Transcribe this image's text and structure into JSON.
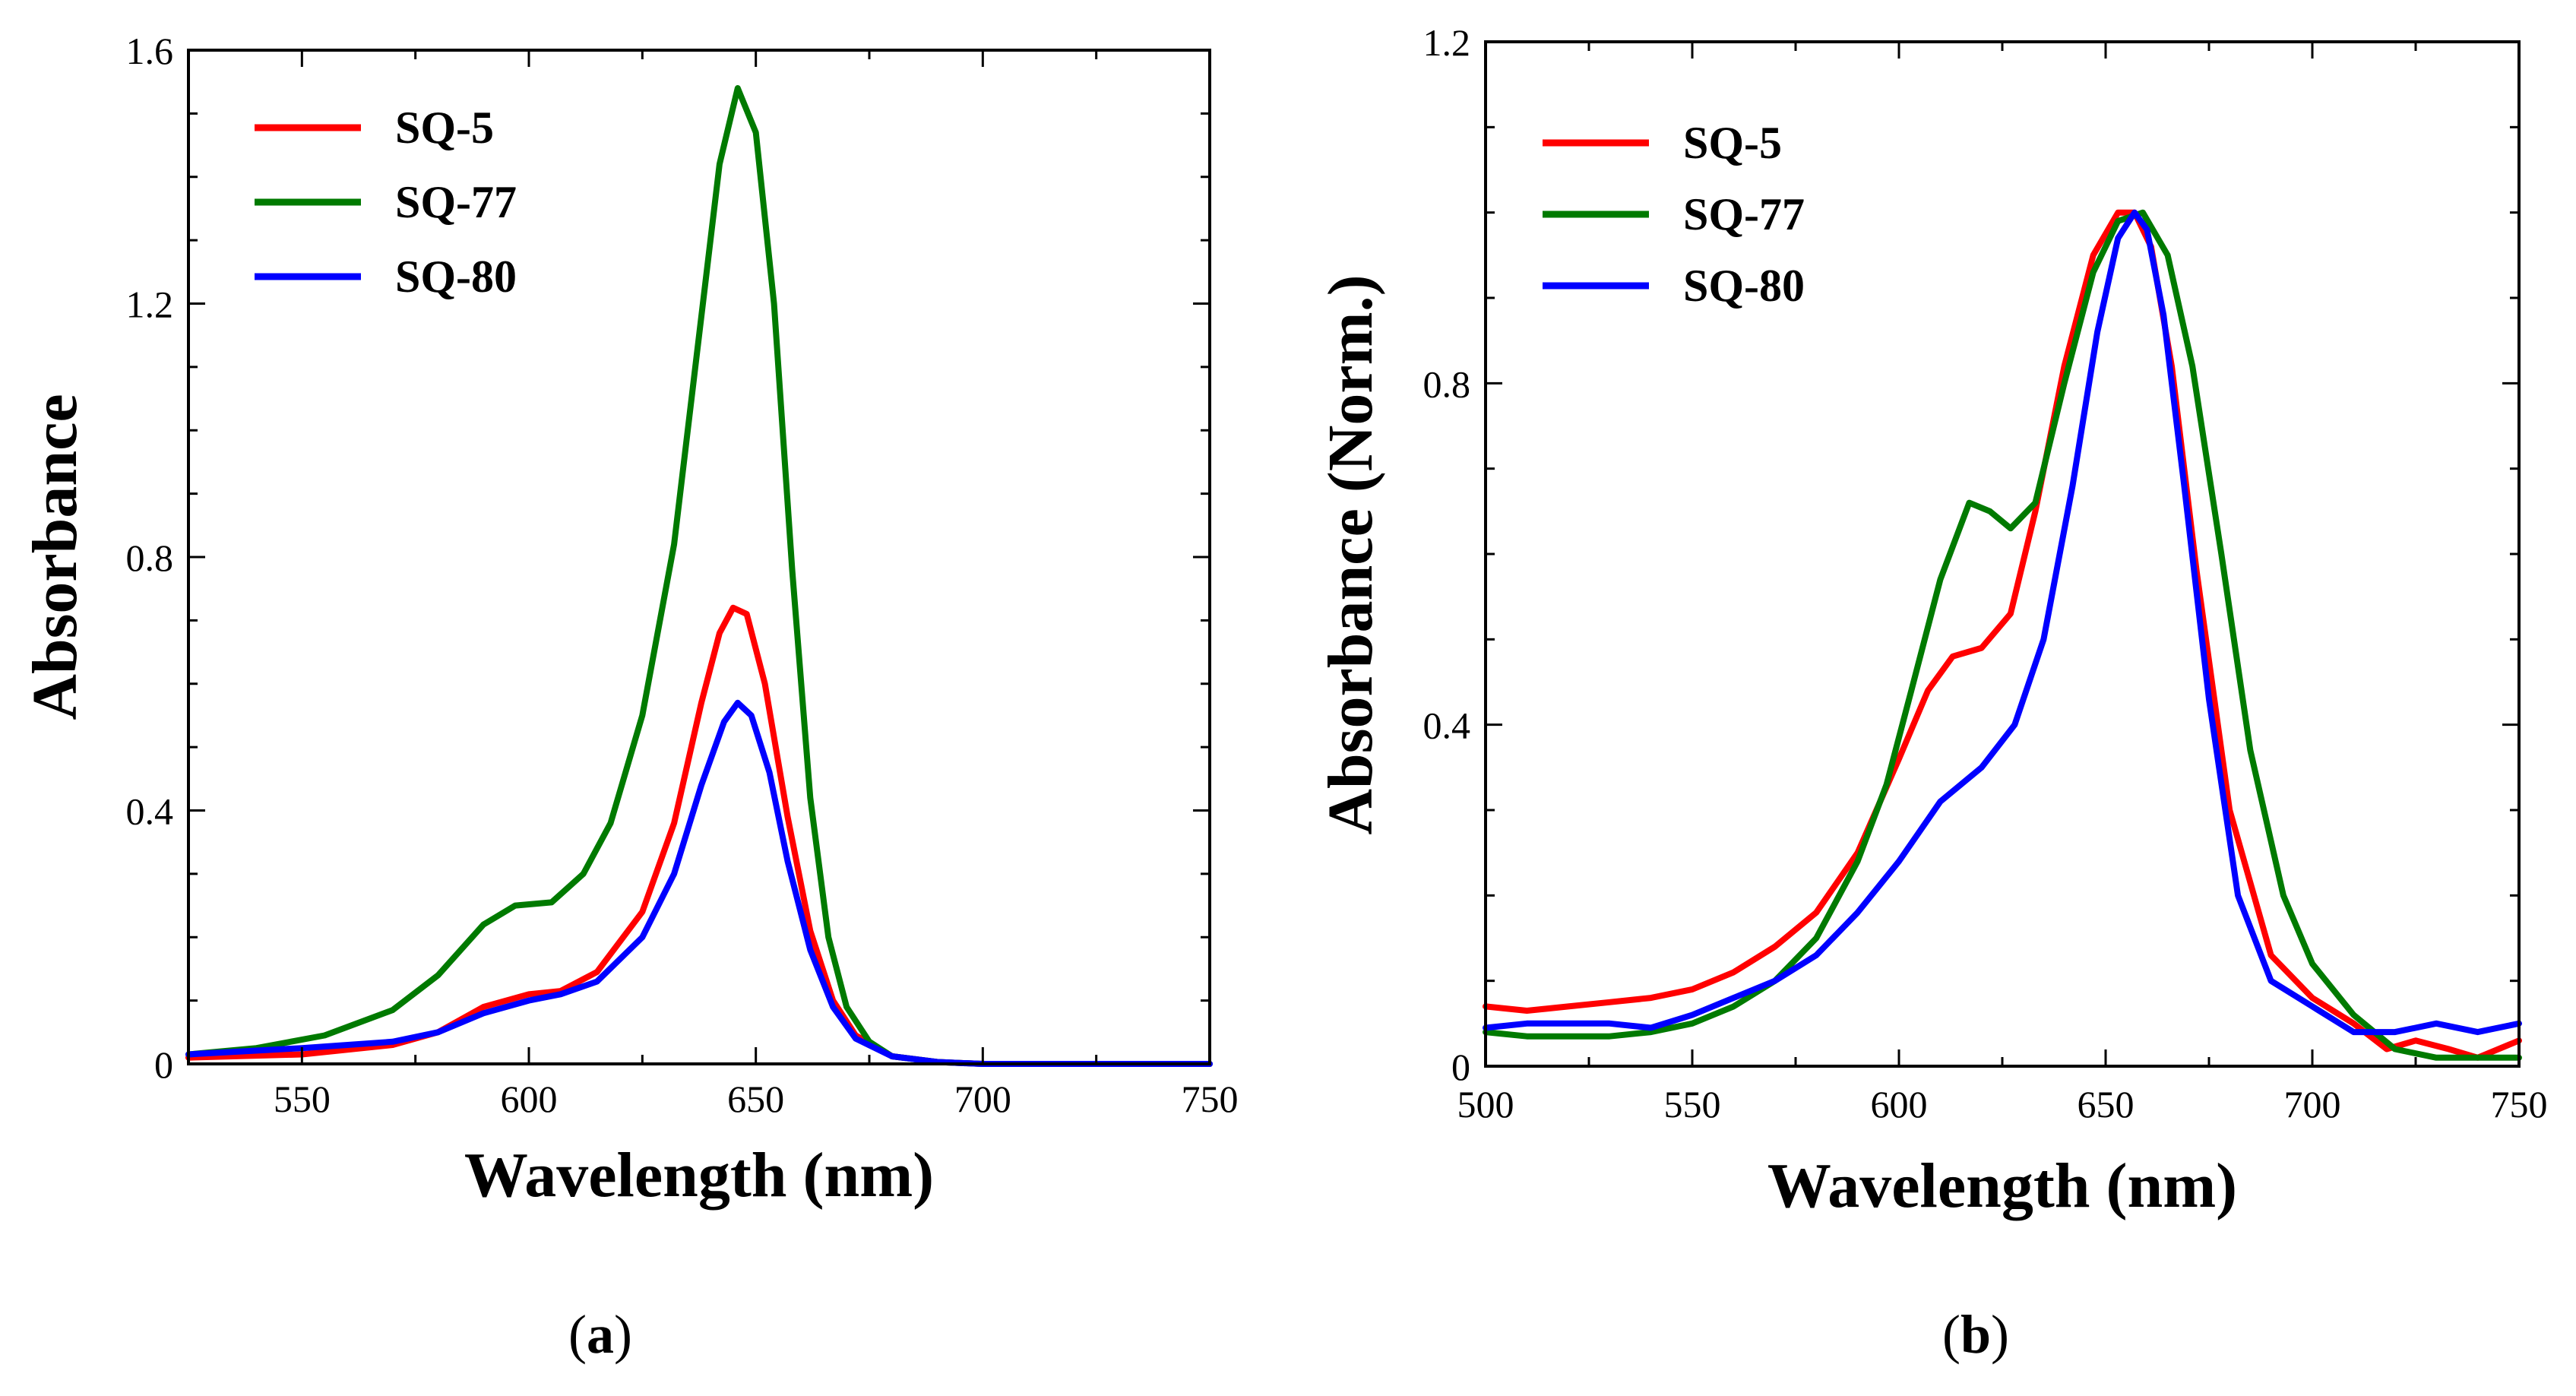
{
  "chart_data": [
    {
      "panel": "a",
      "type": "line",
      "title": "",
      "caption_open": "(",
      "caption_letter": "a",
      "caption_close": ")",
      "xlabel": "Wavelength (nm)",
      "ylabel": "Absorbance",
      "xlim": [
        525,
        750
      ],
      "ylim": [
        0,
        1.6
      ],
      "xticks": [
        550,
        600,
        650,
        700,
        750
      ],
      "xtick_labels": [
        "550",
        "600",
        "650",
        "700",
        "750"
      ],
      "xminor": 25,
      "yticks": [
        0,
        0.4,
        0.8,
        1.2,
        1.6
      ],
      "ytick_labels": [
        "0",
        "0.4",
        "0.8",
        "1.2",
        "1.6"
      ],
      "yminor": 0.1,
      "legend_position": "top-left",
      "series": [
        {
          "name": "SQ-5",
          "color": "#ff0000",
          "x": [
            525,
            550,
            570,
            580,
            590,
            600,
            607,
            615,
            625,
            632,
            638,
            642,
            645,
            648,
            652,
            657,
            662,
            667,
            672,
            680,
            690,
            700,
            750
          ],
          "y": [
            0.01,
            0.015,
            0.03,
            0.05,
            0.09,
            0.11,
            0.115,
            0.145,
            0.24,
            0.38,
            0.57,
            0.68,
            0.72,
            0.71,
            0.6,
            0.39,
            0.21,
            0.1,
            0.045,
            0.012,
            0.003,
            0,
            0
          ]
        },
        {
          "name": "SQ-77",
          "color": "#007a00",
          "x": [
            525,
            540,
            555,
            570,
            580,
            590,
            597,
            605,
            612,
            618,
            625,
            632,
            638,
            642,
            646,
            650,
            654,
            658,
            662,
            666,
            670,
            675,
            680,
            690,
            700,
            750
          ],
          "y": [
            0.015,
            0.025,
            0.045,
            0.085,
            0.14,
            0.22,
            0.25,
            0.255,
            0.3,
            0.38,
            0.55,
            0.82,
            1.18,
            1.42,
            1.54,
            1.47,
            1.2,
            0.78,
            0.42,
            0.2,
            0.09,
            0.035,
            0.012,
            0.003,
            0,
            0
          ]
        },
        {
          "name": "SQ-80",
          "color": "#0000ff",
          "x": [
            525,
            550,
            570,
            580,
            590,
            600,
            607,
            615,
            625,
            632,
            638,
            643,
            646,
            649,
            653,
            657,
            662,
            667,
            672,
            680,
            690,
            700,
            750
          ],
          "y": [
            0.015,
            0.025,
            0.035,
            0.05,
            0.08,
            0.1,
            0.11,
            0.13,
            0.2,
            0.3,
            0.44,
            0.54,
            0.57,
            0.55,
            0.46,
            0.32,
            0.18,
            0.09,
            0.04,
            0.012,
            0.003,
            0,
            0
          ]
        }
      ]
    },
    {
      "panel": "b",
      "type": "line",
      "title": "",
      "caption_open": "(",
      "caption_letter": "b",
      "caption_close": ")",
      "xlabel": "Wavelength (nm)",
      "ylabel": "Absorbance (Norm.)",
      "xlim": [
        500,
        750
      ],
      "ylim": [
        0,
        1.2
      ],
      "xticks": [
        500,
        550,
        600,
        650,
        700,
        750
      ],
      "xtick_labels": [
        "500",
        "550",
        "600",
        "650",
        "700",
        "750"
      ],
      "xminor": 25,
      "yticks": [
        0,
        0.4,
        0.8,
        1.2
      ],
      "ytick_labels": [
        "0",
        "0.4",
        "0.8",
        "1.2"
      ],
      "yminor": 0.1,
      "legend_position": "top-left",
      "series": [
        {
          "name": "SQ-5",
          "color": "#ff0000",
          "x": [
            500,
            510,
            520,
            530,
            540,
            550,
            560,
            570,
            580,
            590,
            600,
            607,
            613,
            620,
            627,
            633,
            640,
            647,
            653,
            657,
            661,
            666,
            672,
            680,
            690,
            700,
            710,
            718,
            725,
            733,
            740,
            750
          ],
          "y": [
            0.07,
            0.065,
            0.07,
            0.075,
            0.08,
            0.09,
            0.11,
            0.14,
            0.18,
            0.25,
            0.36,
            0.44,
            0.48,
            0.49,
            0.53,
            0.65,
            0.82,
            0.95,
            1.0,
            1.0,
            0.96,
            0.82,
            0.58,
            0.3,
            0.13,
            0.08,
            0.05,
            0.02,
            0.03,
            0.02,
            0.01,
            0.03
          ]
        },
        {
          "name": "SQ-77",
          "color": "#007a00",
          "x": [
            500,
            510,
            520,
            530,
            540,
            550,
            560,
            570,
            580,
            590,
            597,
            603,
            610,
            617,
            622,
            627,
            633,
            640,
            647,
            653,
            659,
            665,
            671,
            678,
            685,
            693,
            700,
            710,
            720,
            730,
            740,
            750
          ],
          "y": [
            0.04,
            0.035,
            0.035,
            0.035,
            0.04,
            0.05,
            0.07,
            0.1,
            0.15,
            0.24,
            0.33,
            0.44,
            0.57,
            0.66,
            0.65,
            0.63,
            0.66,
            0.8,
            0.93,
            0.99,
            1.0,
            0.95,
            0.82,
            0.6,
            0.37,
            0.2,
            0.12,
            0.06,
            0.02,
            0.01,
            0.01,
            0.01
          ]
        },
        {
          "name": "SQ-80",
          "color": "#0000ff",
          "x": [
            500,
            510,
            520,
            530,
            540,
            550,
            560,
            570,
            580,
            590,
            600,
            610,
            620,
            628,
            635,
            642,
            648,
            653,
            657,
            660,
            664,
            669,
            675,
            682,
            690,
            700,
            710,
            720,
            730,
            740,
            750
          ],
          "y": [
            0.045,
            0.05,
            0.05,
            0.05,
            0.045,
            0.06,
            0.08,
            0.1,
            0.13,
            0.18,
            0.24,
            0.31,
            0.35,
            0.4,
            0.5,
            0.68,
            0.86,
            0.97,
            1.0,
            0.98,
            0.88,
            0.68,
            0.43,
            0.2,
            0.1,
            0.07,
            0.04,
            0.04,
            0.05,
            0.04,
            0.05
          ]
        }
      ]
    }
  ]
}
